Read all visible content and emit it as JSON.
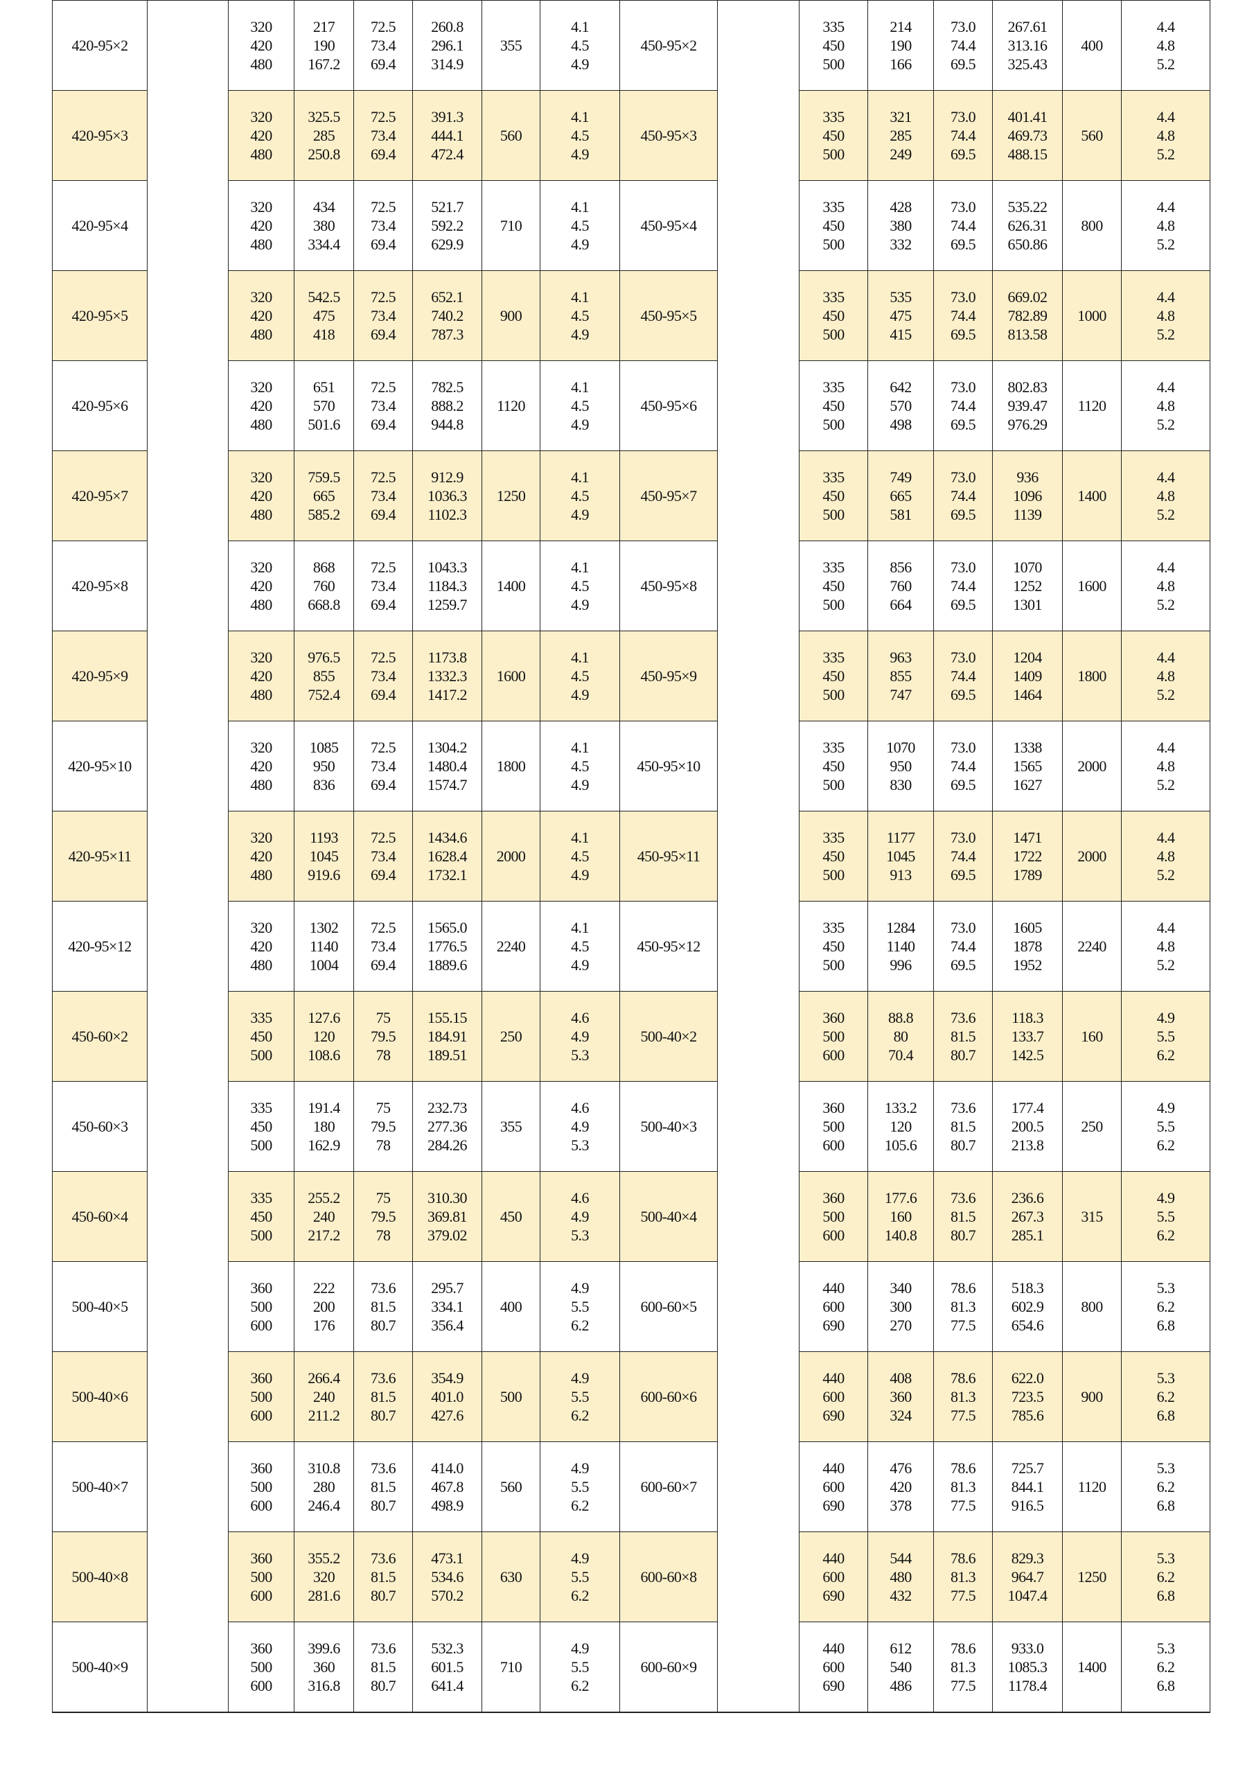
{
  "highlight_color": "#fcf0cb",
  "rows": [
    {
      "left": {
        "model": "420-95×2",
        "a": [
          "320",
          "420",
          "480"
        ],
        "b": [
          "217",
          "190",
          "167.2"
        ],
        "c": [
          "72.5",
          "73.4",
          "69.4"
        ],
        "d": [
          "260.8",
          "296.1",
          "314.9"
        ],
        "e": "355",
        "f": [
          "4.1",
          "4.5",
          "4.9"
        ]
      },
      "right": {
        "model": "450-95×2",
        "a": [
          "335",
          "450",
          "500"
        ],
        "b": [
          "214",
          "190",
          "166"
        ],
        "c": [
          "73.0",
          "74.4",
          "69.5"
        ],
        "d": [
          "267.61",
          "313.16",
          "325.43"
        ],
        "e": "400",
        "f": [
          "4.4",
          "4.8",
          "5.2"
        ]
      }
    },
    {
      "left": {
        "model": "420-95×3",
        "a": [
          "320",
          "420",
          "480"
        ],
        "b": [
          "325.5",
          "285",
          "250.8"
        ],
        "c": [
          "72.5",
          "73.4",
          "69.4"
        ],
        "d": [
          "391.3",
          "444.1",
          "472.4"
        ],
        "e": "560",
        "f": [
          "4.1",
          "4.5",
          "4.9"
        ]
      },
      "right": {
        "model": "450-95×3",
        "a": [
          "335",
          "450",
          "500"
        ],
        "b": [
          "321",
          "285",
          "249"
        ],
        "c": [
          "73.0",
          "74.4",
          "69.5"
        ],
        "d": [
          "401.41",
          "469.73",
          "488.15"
        ],
        "e": "560",
        "f": [
          "4.4",
          "4.8",
          "5.2"
        ]
      }
    },
    {
      "left": {
        "model": "420-95×4",
        "a": [
          "320",
          "420",
          "480"
        ],
        "b": [
          "434",
          "380",
          "334.4"
        ],
        "c": [
          "72.5",
          "73.4",
          "69.4"
        ],
        "d": [
          "521.7",
          "592.2",
          "629.9"
        ],
        "e": "710",
        "f": [
          "4.1",
          "4.5",
          "4.9"
        ]
      },
      "right": {
        "model": "450-95×4",
        "a": [
          "335",
          "450",
          "500"
        ],
        "b": [
          "428",
          "380",
          "332"
        ],
        "c": [
          "73.0",
          "74.4",
          "69.5"
        ],
        "d": [
          "535.22",
          "626.31",
          "650.86"
        ],
        "e": "800",
        "f": [
          "4.4",
          "4.8",
          "5.2"
        ]
      }
    },
    {
      "left": {
        "model": "420-95×5",
        "a": [
          "320",
          "420",
          "480"
        ],
        "b": [
          "542.5",
          "475",
          "418"
        ],
        "c": [
          "72.5",
          "73.4",
          "69.4"
        ],
        "d": [
          "652.1",
          "740.2",
          "787.3"
        ],
        "e": "900",
        "f": [
          "4.1",
          "4.5",
          "4.9"
        ]
      },
      "right": {
        "model": "450-95×5",
        "a": [
          "335",
          "450",
          "500"
        ],
        "b": [
          "535",
          "475",
          "415"
        ],
        "c": [
          "73.0",
          "74.4",
          "69.5"
        ],
        "d": [
          "669.02",
          "782.89",
          "813.58"
        ],
        "e": "1000",
        "f": [
          "4.4",
          "4.8",
          "5.2"
        ]
      }
    },
    {
      "left": {
        "model": "420-95×6",
        "a": [
          "320",
          "420",
          "480"
        ],
        "b": [
          "651",
          "570",
          "501.6"
        ],
        "c": [
          "72.5",
          "73.4",
          "69.4"
        ],
        "d": [
          "782.5",
          "888.2",
          "944.8"
        ],
        "e": "1120",
        "f": [
          "4.1",
          "4.5",
          "4.9"
        ]
      },
      "right": {
        "model": "450-95×6",
        "a": [
          "335",
          "450",
          "500"
        ],
        "b": [
          "642",
          "570",
          "498"
        ],
        "c": [
          "73.0",
          "74.4",
          "69.5"
        ],
        "d": [
          "802.83",
          "939.47",
          "976.29"
        ],
        "e": "1120",
        "f": [
          "4.4",
          "4.8",
          "5.2"
        ]
      }
    },
    {
      "left": {
        "model": "420-95×7",
        "a": [
          "320",
          "420",
          "480"
        ],
        "b": [
          "759.5",
          "665",
          "585.2"
        ],
        "c": [
          "72.5",
          "73.4",
          "69.4"
        ],
        "d": [
          "912.9",
          "1036.3",
          "1102.3"
        ],
        "e": "1250",
        "f": [
          "4.1",
          "4.5",
          "4.9"
        ]
      },
      "right": {
        "model": "450-95×7",
        "a": [
          "335",
          "450",
          "500"
        ],
        "b": [
          "749",
          "665",
          "581"
        ],
        "c": [
          "73.0",
          "74.4",
          "69.5"
        ],
        "d": [
          "936",
          "1096",
          "1139"
        ],
        "e": "1400",
        "f": [
          "4.4",
          "4.8",
          "5.2"
        ]
      }
    },
    {
      "left": {
        "model": "420-95×8",
        "a": [
          "320",
          "420",
          "480"
        ],
        "b": [
          "868",
          "760",
          "668.8"
        ],
        "c": [
          "72.5",
          "73.4",
          "69.4"
        ],
        "d": [
          "1043.3",
          "1184.3",
          "1259.7"
        ],
        "e": "1400",
        "f": [
          "4.1",
          "4.5",
          "4.9"
        ]
      },
      "right": {
        "model": "450-95×8",
        "a": [
          "335",
          "450",
          "500"
        ],
        "b": [
          "856",
          "760",
          "664"
        ],
        "c": [
          "73.0",
          "74.4",
          "69.5"
        ],
        "d": [
          "1070",
          "1252",
          "1301"
        ],
        "e": "1600",
        "f": [
          "4.4",
          "4.8",
          "5.2"
        ]
      }
    },
    {
      "left": {
        "model": "420-95×9",
        "a": [
          "320",
          "420",
          "480"
        ],
        "b": [
          "976.5",
          "855",
          "752.4"
        ],
        "c": [
          "72.5",
          "73.4",
          "69.4"
        ],
        "d": [
          "1173.8",
          "1332.3",
          "1417.2"
        ],
        "e": "1600",
        "f": [
          "4.1",
          "4.5",
          "4.9"
        ]
      },
      "right": {
        "model": "450-95×9",
        "a": [
          "335",
          "450",
          "500"
        ],
        "b": [
          "963",
          "855",
          "747"
        ],
        "c": [
          "73.0",
          "74.4",
          "69.5"
        ],
        "d": [
          "1204",
          "1409",
          "1464"
        ],
        "e": "1800",
        "f": [
          "4.4",
          "4.8",
          "5.2"
        ]
      }
    },
    {
      "left": {
        "model": "420-95×10",
        "a": [
          "320",
          "420",
          "480"
        ],
        "b": [
          "1085",
          "950",
          "836"
        ],
        "c": [
          "72.5",
          "73.4",
          "69.4"
        ],
        "d": [
          "1304.2",
          "1480.4",
          "1574.7"
        ],
        "e": "1800",
        "f": [
          "4.1",
          "4.5",
          "4.9"
        ]
      },
      "right": {
        "model": "450-95×10",
        "a": [
          "335",
          "450",
          "500"
        ],
        "b": [
          "1070",
          "950",
          "830"
        ],
        "c": [
          "73.0",
          "74.4",
          "69.5"
        ],
        "d": [
          "1338",
          "1565",
          "1627"
        ],
        "e": "2000",
        "f": [
          "4.4",
          "4.8",
          "5.2"
        ]
      }
    },
    {
      "left": {
        "model": "420-95×11",
        "a": [
          "320",
          "420",
          "480"
        ],
        "b": [
          "1193",
          "1045",
          "919.6"
        ],
        "c": [
          "72.5",
          "73.4",
          "69.4"
        ],
        "d": [
          "1434.6",
          "1628.4",
          "1732.1"
        ],
        "e": "2000",
        "f": [
          "4.1",
          "4.5",
          "4.9"
        ]
      },
      "right": {
        "model": "450-95×11",
        "a": [
          "335",
          "450",
          "500"
        ],
        "b": [
          "1177",
          "1045",
          "913"
        ],
        "c": [
          "73.0",
          "74.4",
          "69.5"
        ],
        "d": [
          "1471",
          "1722",
          "1789"
        ],
        "e": "2000",
        "f": [
          "4.4",
          "4.8",
          "5.2"
        ]
      }
    },
    {
      "left": {
        "model": "420-95×12",
        "a": [
          "320",
          "420",
          "480"
        ],
        "b": [
          "1302",
          "1140",
          "1004"
        ],
        "c": [
          "72.5",
          "73.4",
          "69.4"
        ],
        "d": [
          "1565.0",
          "1776.5",
          "1889.6"
        ],
        "e": "2240",
        "f": [
          "4.1",
          "4.5",
          "4.9"
        ]
      },
      "right": {
        "model": "450-95×12",
        "a": [
          "335",
          "450",
          "500"
        ],
        "b": [
          "1284",
          "1140",
          "996"
        ],
        "c": [
          "73.0",
          "74.4",
          "69.5"
        ],
        "d": [
          "1605",
          "1878",
          "1952"
        ],
        "e": "2240",
        "f": [
          "4.4",
          "4.8",
          "5.2"
        ]
      }
    },
    {
      "left": {
        "model": "450-60×2",
        "a": [
          "335",
          "450",
          "500"
        ],
        "b": [
          "127.6",
          "120",
          "108.6"
        ],
        "c": [
          "75",
          "79.5",
          "78"
        ],
        "d": [
          "155.15",
          "184.91",
          "189.51"
        ],
        "e": "250",
        "f": [
          "4.6",
          "4.9",
          "5.3"
        ]
      },
      "right": {
        "model": "500-40×2",
        "a": [
          "360",
          "500",
          "600"
        ],
        "b": [
          "88.8",
          "80",
          "70.4"
        ],
        "c": [
          "73.6",
          "81.5",
          "80.7"
        ],
        "d": [
          "118.3",
          "133.7",
          "142.5"
        ],
        "e": "160",
        "f": [
          "4.9",
          "5.5",
          "6.2"
        ]
      }
    },
    {
      "left": {
        "model": "450-60×3",
        "a": [
          "335",
          "450",
          "500"
        ],
        "b": [
          "191.4",
          "180",
          "162.9"
        ],
        "c": [
          "75",
          "79.5",
          "78"
        ],
        "d": [
          "232.73",
          "277.36",
          "284.26"
        ],
        "e": "355",
        "f": [
          "4.6",
          "4.9",
          "5.3"
        ]
      },
      "right": {
        "model": "500-40×3",
        "a": [
          "360",
          "500",
          "600"
        ],
        "b": [
          "133.2",
          "120",
          "105.6"
        ],
        "c": [
          "73.6",
          "81.5",
          "80.7"
        ],
        "d": [
          "177.4",
          "200.5",
          "213.8"
        ],
        "e": "250",
        "f": [
          "4.9",
          "5.5",
          "6.2"
        ]
      }
    },
    {
      "left": {
        "model": "450-60×4",
        "a": [
          "335",
          "450",
          "500"
        ],
        "b": [
          "255.2",
          "240",
          "217.2"
        ],
        "c": [
          "75",
          "79.5",
          "78"
        ],
        "d": [
          "310.30",
          "369.81",
          "379.02"
        ],
        "e": "450",
        "f": [
          "4.6",
          "4.9",
          "5.3"
        ]
      },
      "right": {
        "model": "500-40×4",
        "a": [
          "360",
          "500",
          "600"
        ],
        "b": [
          "177.6",
          "160",
          "140.8"
        ],
        "c": [
          "73.6",
          "81.5",
          "80.7"
        ],
        "d": [
          "236.6",
          "267.3",
          "285.1"
        ],
        "e": "315",
        "f": [
          "4.9",
          "5.5",
          "6.2"
        ]
      }
    },
    {
      "left": {
        "model": "500-40×5",
        "a": [
          "360",
          "500",
          "600"
        ],
        "b": [
          "222",
          "200",
          "176"
        ],
        "c": [
          "73.6",
          "81.5",
          "80.7"
        ],
        "d": [
          "295.7",
          "334.1",
          "356.4"
        ],
        "e": "400",
        "f": [
          "4.9",
          "5.5",
          "6.2"
        ]
      },
      "right": {
        "model": "600-60×5",
        "a": [
          "440",
          "600",
          "690"
        ],
        "b": [
          "340",
          "300",
          "270"
        ],
        "c": [
          "78.6",
          "81.3",
          "77.5"
        ],
        "d": [
          "518.3",
          "602.9",
          "654.6"
        ],
        "e": "800",
        "f": [
          "5.3",
          "6.2",
          "6.8"
        ]
      }
    },
    {
      "left": {
        "model": "500-40×6",
        "a": [
          "360",
          "500",
          "600"
        ],
        "b": [
          "266.4",
          "240",
          "211.2"
        ],
        "c": [
          "73.6",
          "81.5",
          "80.7"
        ],
        "d": [
          "354.9",
          "401.0",
          "427.6"
        ],
        "e": "500",
        "f": [
          "4.9",
          "5.5",
          "6.2"
        ]
      },
      "right": {
        "model": "600-60×6",
        "a": [
          "440",
          "600",
          "690"
        ],
        "b": [
          "408",
          "360",
          "324"
        ],
        "c": [
          "78.6",
          "81.3",
          "77.5"
        ],
        "d": [
          "622.0",
          "723.5",
          "785.6"
        ],
        "e": "900",
        "f": [
          "5.3",
          "6.2",
          "6.8"
        ]
      }
    },
    {
      "left": {
        "model": "500-40×7",
        "a": [
          "360",
          "500",
          "600"
        ],
        "b": [
          "310.8",
          "280",
          "246.4"
        ],
        "c": [
          "73.6",
          "81.5",
          "80.7"
        ],
        "d": [
          "414.0",
          "467.8",
          "498.9"
        ],
        "e": "560",
        "f": [
          "4.9",
          "5.5",
          "6.2"
        ]
      },
      "right": {
        "model": "600-60×7",
        "a": [
          "440",
          "600",
          "690"
        ],
        "b": [
          "476",
          "420",
          "378"
        ],
        "c": [
          "78.6",
          "81.3",
          "77.5"
        ],
        "d": [
          "725.7",
          "844.1",
          "916.5"
        ],
        "e": "1120",
        "f": [
          "5.3",
          "6.2",
          "6.8"
        ]
      }
    },
    {
      "left": {
        "model": "500-40×8",
        "a": [
          "360",
          "500",
          "600"
        ],
        "b": [
          "355.2",
          "320",
          "281.6"
        ],
        "c": [
          "73.6",
          "81.5",
          "80.7"
        ],
        "d": [
          "473.1",
          "534.6",
          "570.2"
        ],
        "e": "630",
        "f": [
          "4.9",
          "5.5",
          "6.2"
        ]
      },
      "right": {
        "model": "600-60×8",
        "a": [
          "440",
          "600",
          "690"
        ],
        "b": [
          "544",
          "480",
          "432"
        ],
        "c": [
          "78.6",
          "81.3",
          "77.5"
        ],
        "d": [
          "829.3",
          "964.7",
          "1047.4"
        ],
        "e": "1250",
        "f": [
          "5.3",
          "6.2",
          "6.8"
        ]
      }
    },
    {
      "left": {
        "model": "500-40×9",
        "a": [
          "360",
          "500",
          "600"
        ],
        "b": [
          "399.6",
          "360",
          "316.8"
        ],
        "c": [
          "73.6",
          "81.5",
          "80.7"
        ],
        "d": [
          "532.3",
          "601.5",
          "641.4"
        ],
        "e": "710",
        "f": [
          "4.9",
          "5.5",
          "6.2"
        ]
      },
      "right": {
        "model": "600-60×9",
        "a": [
          "440",
          "600",
          "690"
        ],
        "b": [
          "612",
          "540",
          "486"
        ],
        "c": [
          "78.6",
          "81.3",
          "77.5"
        ],
        "d": [
          "933.0",
          "1085.3",
          "1178.4"
        ],
        "e": "1400",
        "f": [
          "5.3",
          "6.2",
          "6.8"
        ]
      }
    }
  ]
}
